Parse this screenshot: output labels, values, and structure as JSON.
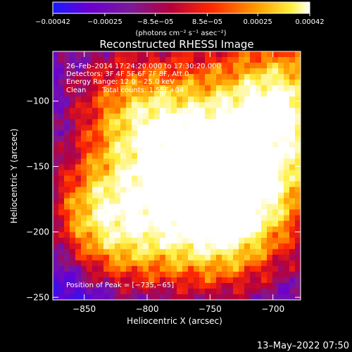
{
  "chart_data": {
    "type": "heatmap",
    "title": "Reconstructed RHESSI Image",
    "xlabel": "Heliocentric X (arcsec)",
    "ylabel": "Heliocentric Y (arcsec)",
    "xlim": [
      -875,
      -678
    ],
    "ylim": [
      -252,
      -62
    ],
    "x_ticks": [
      -850,
      -800,
      -750,
      -700
    ],
    "y_ticks": [
      -100,
      -150,
      -200,
      -250
    ],
    "x_tick_labels": [
      "−850",
      "−800",
      "−750",
      "−700"
    ],
    "y_tick_labels": [
      "−100",
      "−150",
      "−200",
      "−250"
    ],
    "colorbar": {
      "range": [
        -0.00042,
        0.00042
      ],
      "ticks": [
        -0.00042,
        -0.00025,
        -8.5e-05,
        8.5e-05,
        0.00025,
        0.00042
      ],
      "tick_labels": [
        "−0.00042",
        "−0.00025",
        "−8.5e−05",
        "8.5e−05",
        "0.00025",
        "0.00042"
      ],
      "units": "(photons cm⁻² s⁻¹ asec⁻²)",
      "colors": [
        "#1a1aff",
        "#6a00d0",
        "#7a1a9a",
        "#b8003a",
        "#ff2a00",
        "#ffa000",
        "#fff040",
        "#ffffff"
      ]
    },
    "annotations": {
      "time_range": "26–Feb–2014 17:24:20.000 to 17:30:20.000",
      "detectors": "Detectors: 3F 4F 5F 6F 7F 8F, Att 0",
      "energy_range": "Energy Range: 12.0 – 25.0 keV",
      "algorithm": "Clean",
      "total_counts": "Total counts: 1.55E+04",
      "peak_position": "Position of Peak = [−735,−65]"
    },
    "peak": {
      "x": -735,
      "y": -65
    },
    "grid": false,
    "legend": "none"
  },
  "footer": {
    "timestamp": "13–May–2022 07:50"
  }
}
